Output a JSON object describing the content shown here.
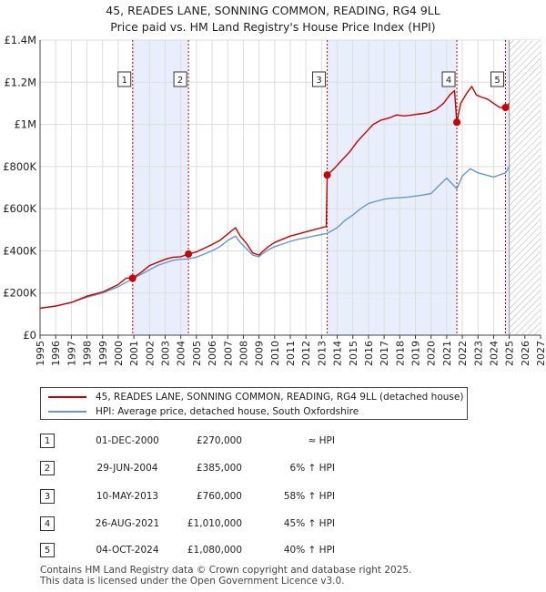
{
  "title": "45, READES LANE, SONNING COMMON, READING, RG4 9LL",
  "subtitle": "Price paid vs. HM Land Registry's House Price Index (HPI)",
  "colors": {
    "price": "#cc0000",
    "hpi": "#6699cc",
    "band": "#e8eefb",
    "vline": "#cc0000",
    "grid": "#dddddd"
  },
  "legend": {
    "price_label": "45, READES LANE, SONNING COMMON, READING, RG4 9LL (detached house)",
    "hpi_label": "HPI: Average price, detached house, South Oxfordshire"
  },
  "sales": [
    {
      "num": "1",
      "date": "01-DEC-2000",
      "price": "£270,000",
      "hpi": "≈ HPI"
    },
    {
      "num": "2",
      "date": "29-JUN-2004",
      "price": "£385,000",
      "hpi": "6% ↑ HPI"
    },
    {
      "num": "3",
      "date": "10-MAY-2013",
      "price": "£760,000",
      "hpi": "58% ↑ HPI"
    },
    {
      "num": "4",
      "date": "26-AUG-2021",
      "price": "£1,010,000",
      "hpi": "45% ↑ HPI"
    },
    {
      "num": "5",
      "date": "04-OCT-2024",
      "price": "£1,080,000",
      "hpi": "40% ↑ HPI"
    }
  ],
  "footer": {
    "line1": "Contains HM Land Registry data © Crown copyright and database right 2025.",
    "line2": "This data is licensed under the Open Government Licence v3.0."
  },
  "chart_data": {
    "type": "line",
    "xlim": [
      1995,
      2027
    ],
    "ylim": [
      0,
      1400000
    ],
    "x_ticks": [
      "1995",
      "1996",
      "1997",
      "1998",
      "1999",
      "2000",
      "2001",
      "2002",
      "2003",
      "2004",
      "2005",
      "2006",
      "2007",
      "2008",
      "2009",
      "2010",
      "2011",
      "2012",
      "2013",
      "2014",
      "2015",
      "2016",
      "2017",
      "2018",
      "2019",
      "2020",
      "2021",
      "2022",
      "2023",
      "2024",
      "2025",
      "2026",
      "2027"
    ],
    "y_ticks": [
      {
        "value": 0,
        "label": "£0"
      },
      {
        "value": 200000,
        "label": "£200K"
      },
      {
        "value": 400000,
        "label": "£400K"
      },
      {
        "value": 600000,
        "label": "£600K"
      },
      {
        "value": 800000,
        "label": "£800K"
      },
      {
        "value": 1000000,
        "label": "£1M"
      },
      {
        "value": 1200000,
        "label": "£1.2M"
      },
      {
        "value": 1400000,
        "label": "£1.4M"
      }
    ],
    "hatch_from": 2025.0,
    "shaded_periods": [
      [
        2000.92,
        2004.49
      ],
      [
        2013.36,
        2021.65
      ],
      [
        2024.76,
        2025.0
      ]
    ],
    "markers": [
      {
        "label": "1",
        "x": 2000.92,
        "y": 270000
      },
      {
        "label": "2",
        "x": 2004.49,
        "y": 385000
      },
      {
        "label": "3",
        "x": 2013.36,
        "y": 760000
      },
      {
        "label": "4",
        "x": 2021.65,
        "y": 1010000
      },
      {
        "label": "5",
        "x": 2024.76,
        "y": 1080000
      }
    ],
    "series": [
      {
        "name": "45, READES LANE, SONNING COMMON, READING, RG4 9LL (detached house)",
        "x": [
          1995.0,
          1996.0,
          1997.0,
          1998.0,
          1999.0,
          2000.0,
          2000.5,
          2000.92,
          2001.5,
          2002.0,
          2002.5,
          2003.0,
          2003.5,
          2004.0,
          2004.49,
          2005.0,
          2006.0,
          2006.5,
          2007.0,
          2007.5,
          2007.8,
          2008.2,
          2008.6,
          2009.0,
          2009.2,
          2009.6,
          2010.0,
          2010.5,
          2011.0,
          2011.5,
          2012.0,
          2012.5,
          2013.0,
          2013.3,
          2013.36,
          2013.8,
          2014.3,
          2014.8,
          2015.3,
          2015.8,
          2016.3,
          2016.8,
          2017.3,
          2017.8,
          2018.3,
          2018.8,
          2019.3,
          2019.8,
          2020.3,
          2020.8,
          2021.2,
          2021.5,
          2021.65,
          2021.9,
          2022.3,
          2022.6,
          2022.9,
          2023.2,
          2023.6,
          2024.0,
          2024.4,
          2024.76,
          2025.0
        ],
        "y": [
          128000,
          138000,
          155000,
          185000,
          205000,
          240000,
          270000,
          270000,
          300000,
          330000,
          345000,
          360000,
          370000,
          372000,
          385000,
          395000,
          430000,
          450000,
          480000,
          510000,
          470000,
          435000,
          390000,
          380000,
          395000,
          420000,
          440000,
          455000,
          470000,
          480000,
          490000,
          500000,
          510000,
          515000,
          760000,
          790000,
          830000,
          870000,
          920000,
          960000,
          1000000,
          1020000,
          1030000,
          1045000,
          1040000,
          1045000,
          1050000,
          1055000,
          1070000,
          1100000,
          1140000,
          1160000,
          1010000,
          1100000,
          1150000,
          1180000,
          1140000,
          1130000,
          1120000,
          1100000,
          1080000,
          1080000,
          1100000
        ]
      },
      {
        "name": "HPI: Average price, detached house, South Oxfordshire",
        "x": [
          1995.0,
          1996.0,
          1997.0,
          1998.0,
          1999.0,
          2000.0,
          2000.92,
          2001.5,
          2002.0,
          2002.5,
          2003.0,
          2003.5,
          2004.0,
          2004.49,
          2005.0,
          2006.0,
          2006.5,
          2007.0,
          2007.5,
          2007.8,
          2008.2,
          2008.6,
          2009.0,
          2009.2,
          2009.6,
          2010.0,
          2010.5,
          2011.0,
          2011.5,
          2012.0,
          2012.5,
          2013.0,
          2013.36,
          2014.0,
          2014.5,
          2015.0,
          2015.5,
          2016.0,
          2016.5,
          2017.0,
          2017.5,
          2018.0,
          2018.5,
          2019.0,
          2019.5,
          2020.0,
          2020.5,
          2021.0,
          2021.65,
          2022.0,
          2022.5,
          2023.0,
          2023.5,
          2024.0,
          2024.76,
          2025.0
        ],
        "y": [
          128000,
          138000,
          155000,
          180000,
          200000,
          230000,
          268000,
          290000,
          310000,
          330000,
          343000,
          355000,
          360000,
          362000,
          370000,
          400000,
          420000,
          450000,
          470000,
          440000,
          410000,
          380000,
          372000,
          385000,
          405000,
          420000,
          432000,
          445000,
          455000,
          462000,
          470000,
          478000,
          483000,
          510000,
          545000,
          570000,
          600000,
          625000,
          635000,
          645000,
          650000,
          652000,
          655000,
          660000,
          665000,
          672000,
          710000,
          745000,
          695000,
          755000,
          790000,
          770000,
          760000,
          750000,
          770000,
          800000
        ]
      }
    ]
  }
}
